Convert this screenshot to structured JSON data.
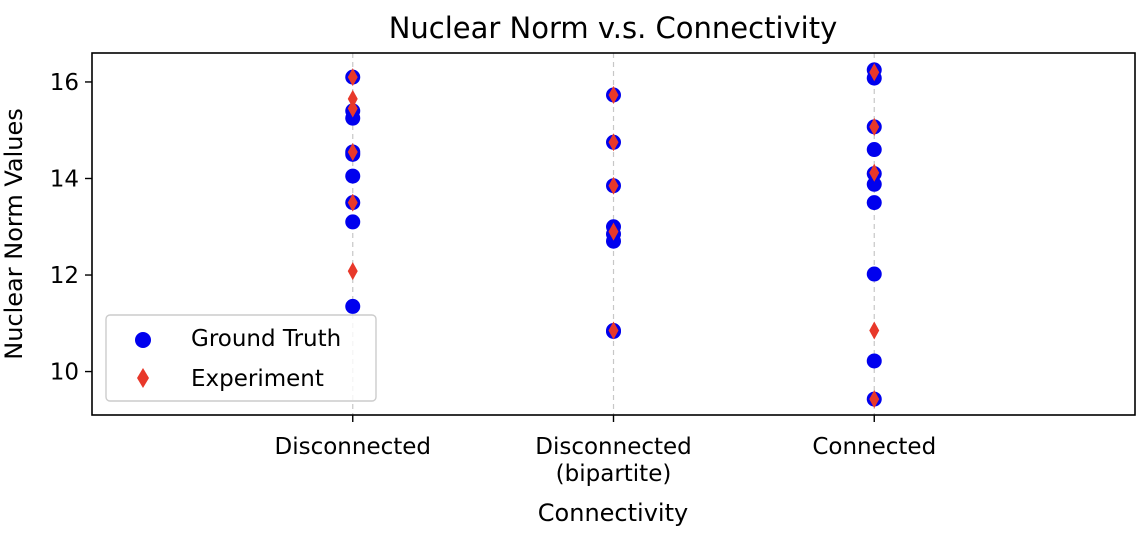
{
  "chart_data": {
    "type": "scatter",
    "title": "Nuclear Norm v.s. Connectivity",
    "xlabel": "Connectivity",
    "ylabel": "Nuclear Norm Values",
    "categories": [
      [
        "Disconnected"
      ],
      [
        "Disconnected",
        "(bipartite)"
      ],
      [
        "Connected"
      ]
    ],
    "xlim": [
      -1,
      3
    ],
    "ylim": [
      9.1,
      16.6
    ],
    "yticks": [
      10,
      12,
      14,
      16
    ],
    "grid": "vertical-dashed",
    "legend_position": "lower-left",
    "series": [
      {
        "name": "Ground Truth",
        "marker": "circle",
        "color": "#0000ee",
        "points": [
          {
            "x": 0,
            "y": 16.1
          },
          {
            "x": 0,
            "y": 15.4
          },
          {
            "x": 0,
            "y": 15.25
          },
          {
            "x": 0,
            "y": 14.55
          },
          {
            "x": 0,
            "y": 14.5
          },
          {
            "x": 0,
            "y": 14.05
          },
          {
            "x": 0,
            "y": 13.5
          },
          {
            "x": 0,
            "y": 13.1
          },
          {
            "x": 0,
            "y": 11.35
          },
          {
            "x": 1,
            "y": 15.73
          },
          {
            "x": 1,
            "y": 14.75
          },
          {
            "x": 1,
            "y": 13.85
          },
          {
            "x": 1,
            "y": 13.0
          },
          {
            "x": 1,
            "y": 12.85
          },
          {
            "x": 1,
            "y": 12.7
          },
          {
            "x": 1,
            "y": 10.85
          },
          {
            "x": 1,
            "y": 10.83
          },
          {
            "x": 2,
            "y": 16.25
          },
          {
            "x": 2,
            "y": 16.08
          },
          {
            "x": 2,
            "y": 15.07
          },
          {
            "x": 2,
            "y": 14.6
          },
          {
            "x": 2,
            "y": 14.1
          },
          {
            "x": 2,
            "y": 13.88
          },
          {
            "x": 2,
            "y": 13.5
          },
          {
            "x": 2,
            "y": 12.02
          },
          {
            "x": 2,
            "y": 10.22
          },
          {
            "x": 2,
            "y": 9.43
          }
        ]
      },
      {
        "name": "Experiment",
        "marker": "diamond",
        "color": "#e8382a",
        "points": [
          {
            "x": 0,
            "y": 16.1
          },
          {
            "x": 0,
            "y": 15.65
          },
          {
            "x": 0,
            "y": 15.45
          },
          {
            "x": 0,
            "y": 14.55
          },
          {
            "x": 0,
            "y": 13.5
          },
          {
            "x": 0,
            "y": 12.08
          },
          {
            "x": 1,
            "y": 15.73
          },
          {
            "x": 1,
            "y": 14.75
          },
          {
            "x": 1,
            "y": 13.85
          },
          {
            "x": 1,
            "y": 12.9
          },
          {
            "x": 1,
            "y": 10.85
          },
          {
            "x": 2,
            "y": 16.2
          },
          {
            "x": 2,
            "y": 15.07
          },
          {
            "x": 2,
            "y": 14.12
          },
          {
            "x": 2,
            "y": 10.85
          },
          {
            "x": 2,
            "y": 9.43
          }
        ]
      }
    ]
  }
}
